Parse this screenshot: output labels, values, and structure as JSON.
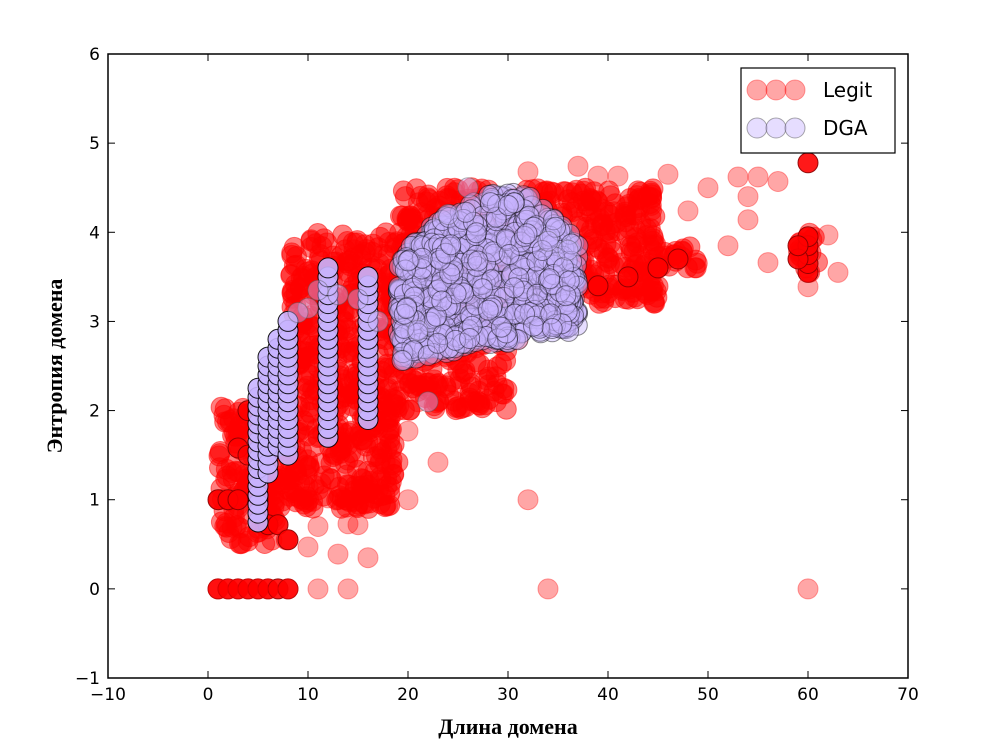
{
  "chart_data": {
    "type": "scatter",
    "title": "",
    "xlabel": "Длина домена",
    "ylabel": "Энтропия домена",
    "xlim": [
      -10,
      70
    ],
    "ylim": [
      -1,
      6
    ],
    "xticks": [
      -10,
      0,
      10,
      20,
      30,
      40,
      50,
      60,
      70
    ],
    "xtick_labels": [
      "−10",
      "0",
      "10",
      "20",
      "30",
      "40",
      "50",
      "60",
      "70"
    ],
    "yticks": [
      -1,
      0,
      1,
      2,
      3,
      4,
      5,
      6
    ],
    "ytick_labels": [
      "−1",
      "0",
      "1",
      "2",
      "3",
      "4",
      "5",
      "6"
    ],
    "grid": false,
    "legend_position": "top-right",
    "series": [
      {
        "name": "Legit",
        "color": "#ff0000",
        "alpha": 0.35,
        "points": [
          [
            1,
            0
          ],
          [
            2,
            0
          ],
          [
            3,
            0
          ],
          [
            4,
            0
          ],
          [
            5,
            0
          ],
          [
            6,
            0
          ],
          [
            8,
            0
          ],
          [
            11,
            0
          ],
          [
            14,
            0
          ],
          [
            34,
            0
          ],
          [
            60,
            0
          ],
          [
            10,
            0.47
          ],
          [
            11,
            0.7
          ],
          [
            13,
            0.39
          ],
          [
            14,
            0.73
          ],
          [
            15,
            0.72
          ],
          [
            16,
            0.35
          ],
          [
            12,
            1.02
          ],
          [
            18,
            0.93
          ],
          [
            20,
            1.0
          ],
          [
            32,
            1.0
          ],
          [
            23,
            1.42
          ],
          [
            17,
            1.8
          ],
          [
            20,
            1.77
          ],
          [
            21,
            2.1
          ],
          [
            25,
            2.27
          ],
          [
            19,
            2.55
          ],
          [
            31,
            2.8
          ],
          [
            27,
            2.97
          ],
          [
            32,
            4.68
          ],
          [
            37,
            4.74
          ],
          [
            39,
            4.63
          ],
          [
            41,
            4.63
          ],
          [
            46,
            4.65
          ],
          [
            50,
            4.5
          ],
          [
            53,
            4.62
          ],
          [
            55,
            4.62
          ],
          [
            57,
            4.57
          ],
          [
            48,
            4.24
          ],
          [
            52,
            3.85
          ],
          [
            54,
            4.14
          ],
          [
            56,
            3.66
          ],
          [
            60,
            3.39
          ],
          [
            63,
            3.55
          ],
          [
            62,
            3.97
          ],
          [
            54,
            4.4
          ],
          [
            44,
            4.4
          ],
          [
            38,
            4.3
          ]
        ],
        "dense_regions": [
          {
            "x": [
              1,
              8
            ],
            "y": [
              0.5,
              2.05
            ]
          },
          {
            "x": [
              8,
              19
            ],
            "y": [
              0.9,
              4.0
            ]
          },
          {
            "x": [
              19,
              30
            ],
            "y": [
              2.0,
              4.5
            ]
          },
          {
            "x": [
              30,
              45
            ],
            "y": [
              3.2,
              4.5
            ]
          },
          {
            "x": [
              45,
              49
            ],
            "y": [
              3.6,
              3.9
            ]
          },
          {
            "x": [
              59,
              61
            ],
            "y": [
              3.55,
              4.0
            ]
          }
        ],
        "opaque_points": [
          [
            1,
            0
          ],
          [
            2,
            0
          ],
          [
            3,
            0
          ],
          [
            4,
            0
          ],
          [
            5,
            0
          ],
          [
            6,
            0
          ],
          [
            7,
            0
          ],
          [
            8,
            0
          ],
          [
            1,
            1.0
          ],
          [
            2,
            1.0
          ],
          [
            3,
            1.0
          ],
          [
            3,
            1.58
          ],
          [
            4,
            1.5
          ],
          [
            4,
            2.0
          ],
          [
            5,
            2.0
          ],
          [
            5,
            1.0
          ],
          [
            6,
            0.72
          ],
          [
            7,
            0.72
          ],
          [
            8,
            0.55
          ],
          [
            60,
            3.55
          ],
          [
            60,
            3.65
          ],
          [
            60,
            3.75
          ],
          [
            60,
            3.85
          ],
          [
            60,
            3.95
          ],
          [
            59,
            3.7
          ],
          [
            59,
            3.85
          ],
          [
            60,
            4.78
          ],
          [
            45,
            3.6
          ],
          [
            47,
            3.7
          ],
          [
            35,
            3.25
          ],
          [
            42,
            3.5
          ],
          [
            39,
            3.4
          ]
        ]
      },
      {
        "name": "DGA",
        "color": "#c8b4ff",
        "alpha": 0.45,
        "columns": [
          {
            "x": 5,
            "y": [
              0.75,
              2.3
            ]
          },
          {
            "x": 6,
            "y": [
              1.3,
              2.6
            ]
          },
          {
            "x": 7,
            "y": [
              1.6,
              2.8
            ]
          },
          {
            "x": 8,
            "y": [
              1.5,
              3.0
            ]
          },
          {
            "x": 12,
            "y": [
              1.7,
              3.6
            ]
          },
          {
            "x": 16,
            "y": [
              1.9,
              3.55
            ]
          }
        ],
        "block": {
          "x": [
            19,
            37
          ],
          "y": [
            2.5,
            4.45
          ],
          "y_top_start": 3.75,
          "y_top_end": 4.45,
          "y_bottom_start": 2.55,
          "y_bottom_end": 2.9
        },
        "extra_points": [
          [
            22,
            2.1
          ],
          [
            21,
            2.9
          ],
          [
            24,
            4.2
          ],
          [
            26,
            4.5
          ],
          [
            17,
            3.0
          ],
          [
            15,
            3.25
          ],
          [
            13,
            3.3
          ],
          [
            11,
            3.35
          ],
          [
            10,
            3.15
          ],
          [
            9,
            3.1
          ],
          [
            34,
            3.9
          ],
          [
            36,
            3.8
          ]
        ]
      }
    ]
  }
}
